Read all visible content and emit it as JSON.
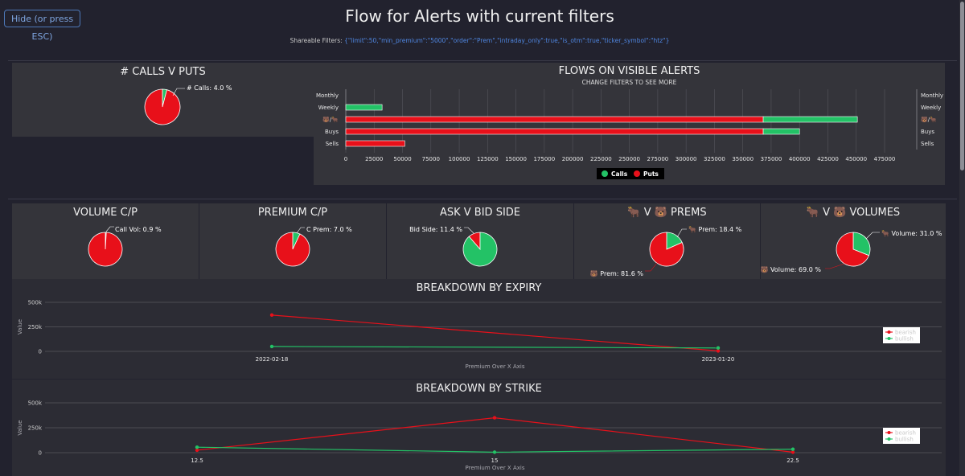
{
  "header": {
    "hide_button": "Hide (or press ESC)",
    "title": "Flow for Alerts with current filters",
    "share_label": "Shareable Filters: ",
    "share_value": "{\"limit\":50,\"min_premium\":\"5000\",\"order\":\"Prem\",\"intraday_only\":true,\"is_otm\":true,\"ticker_symbol\":\"htz\"}"
  },
  "colors": {
    "calls": "#23c266",
    "puts": "#e8101a",
    "panel": "#34343a",
    "bg": "#22222e"
  },
  "pies": {
    "calls_v_puts": {
      "title": "# CALLS V PUTS",
      "label": "# Calls: 4.0 %"
    },
    "volume_cp": {
      "title": "VOLUME C/P",
      "label": "Call Vol: 0.9 %"
    },
    "premium_cp": {
      "title": "PREMIUM C/P",
      "label": "C Prem: 7.0 %"
    },
    "ask_v_bid": {
      "title": "ASK V BID SIDE",
      "label": "Bid Side: 11.4 %"
    },
    "prems": {
      "title": "🐂 V 🐻 PREMS",
      "label_a": "🐂 Prem: 18.4 %",
      "label_b": "🐻 Prem: 81.6 %"
    },
    "volumes": {
      "title": "🐂 V 🐻 VOLUMES",
      "label_a": "🐂 Volume: 31.0 %",
      "label_b": "🐻 Volume: 69.0 %"
    }
  },
  "chart_data": [
    {
      "type": "pie",
      "title": "# CALLS V PUTS",
      "labels": [
        "Calls",
        "Puts"
      ],
      "values": [
        4.0,
        96.0
      ]
    },
    {
      "type": "bar",
      "title": "FLOWS ON VISIBLE ALERTS",
      "subtitle": "CHANGE FILTERS TO SEE MORE",
      "orientation": "horizontal",
      "stacked": true,
      "categories": [
        "Monthly",
        "Weekly",
        "🐻/🐂",
        "Buys",
        "Sells"
      ],
      "series": [
        {
          "name": "Puts",
          "color": "#e8101a",
          "values": [
            0,
            0,
            368000,
            368000,
            52000
          ]
        },
        {
          "name": "Calls",
          "color": "#23c266",
          "values": [
            0,
            32000,
            83000,
            32000,
            0
          ]
        }
      ],
      "xticks": [
        "0",
        "25000",
        "50000",
        "75000",
        "100000",
        "125000",
        "150000",
        "175000",
        "200000",
        "225000",
        "250000",
        "275000",
        "300000",
        "325000",
        "350000",
        "375000",
        "400000",
        "425000",
        "450000",
        "475000"
      ],
      "xlim": [
        0,
        475000
      ],
      "legend": "bottom"
    },
    {
      "type": "pie",
      "title": "VOLUME C/P",
      "labels": [
        "Calls",
        "Puts"
      ],
      "values": [
        0.9,
        99.1
      ]
    },
    {
      "type": "pie",
      "title": "PREMIUM C/P",
      "labels": [
        "Calls",
        "Puts"
      ],
      "values": [
        7.0,
        93.0
      ]
    },
    {
      "type": "pie",
      "title": "ASK V BID SIDE",
      "labels": [
        "Bid",
        "Ask"
      ],
      "values": [
        11.4,
        88.6
      ]
    },
    {
      "type": "pie",
      "title": "🐂 V 🐻 PREMS",
      "labels": [
        "Bullish",
        "Bearish"
      ],
      "values": [
        18.4,
        81.6
      ]
    },
    {
      "type": "pie",
      "title": "🐂 V 🐻 VOLUMES",
      "labels": [
        "Bullish",
        "Bearish"
      ],
      "values": [
        31.0,
        69.0
      ]
    },
    {
      "type": "line",
      "title": "BREAKDOWN BY EXPIRY",
      "xlabel": "Premium Over X Axis",
      "ylabel": "Value",
      "x": [
        "2022-02-18",
        "2023-01-20"
      ],
      "series": [
        {
          "name": "bearish",
          "color": "#e8101a",
          "values": [
            370000,
            5000
          ]
        },
        {
          "name": "bullish",
          "color": "#23c266",
          "values": [
            50000,
            35000
          ]
        }
      ],
      "yticks": [
        "0",
        "250k",
        "500k"
      ],
      "ylim": [
        0,
        500000
      ],
      "legend": "right"
    },
    {
      "type": "line",
      "title": "BREAKDOWN BY STRIKE",
      "xlabel": "Premium Over X Axis",
      "ylabel": "Value",
      "x": [
        "12.5",
        "15",
        "22.5"
      ],
      "series": [
        {
          "name": "bearish",
          "color": "#e8101a",
          "values": [
            25000,
            350000,
            5000
          ]
        },
        {
          "name": "bullish",
          "color": "#23c266",
          "values": [
            55000,
            5000,
            35000
          ]
        }
      ],
      "yticks": [
        "0",
        "250k",
        "500k"
      ],
      "ylim": [
        0,
        500000
      ],
      "legend": "right"
    }
  ]
}
